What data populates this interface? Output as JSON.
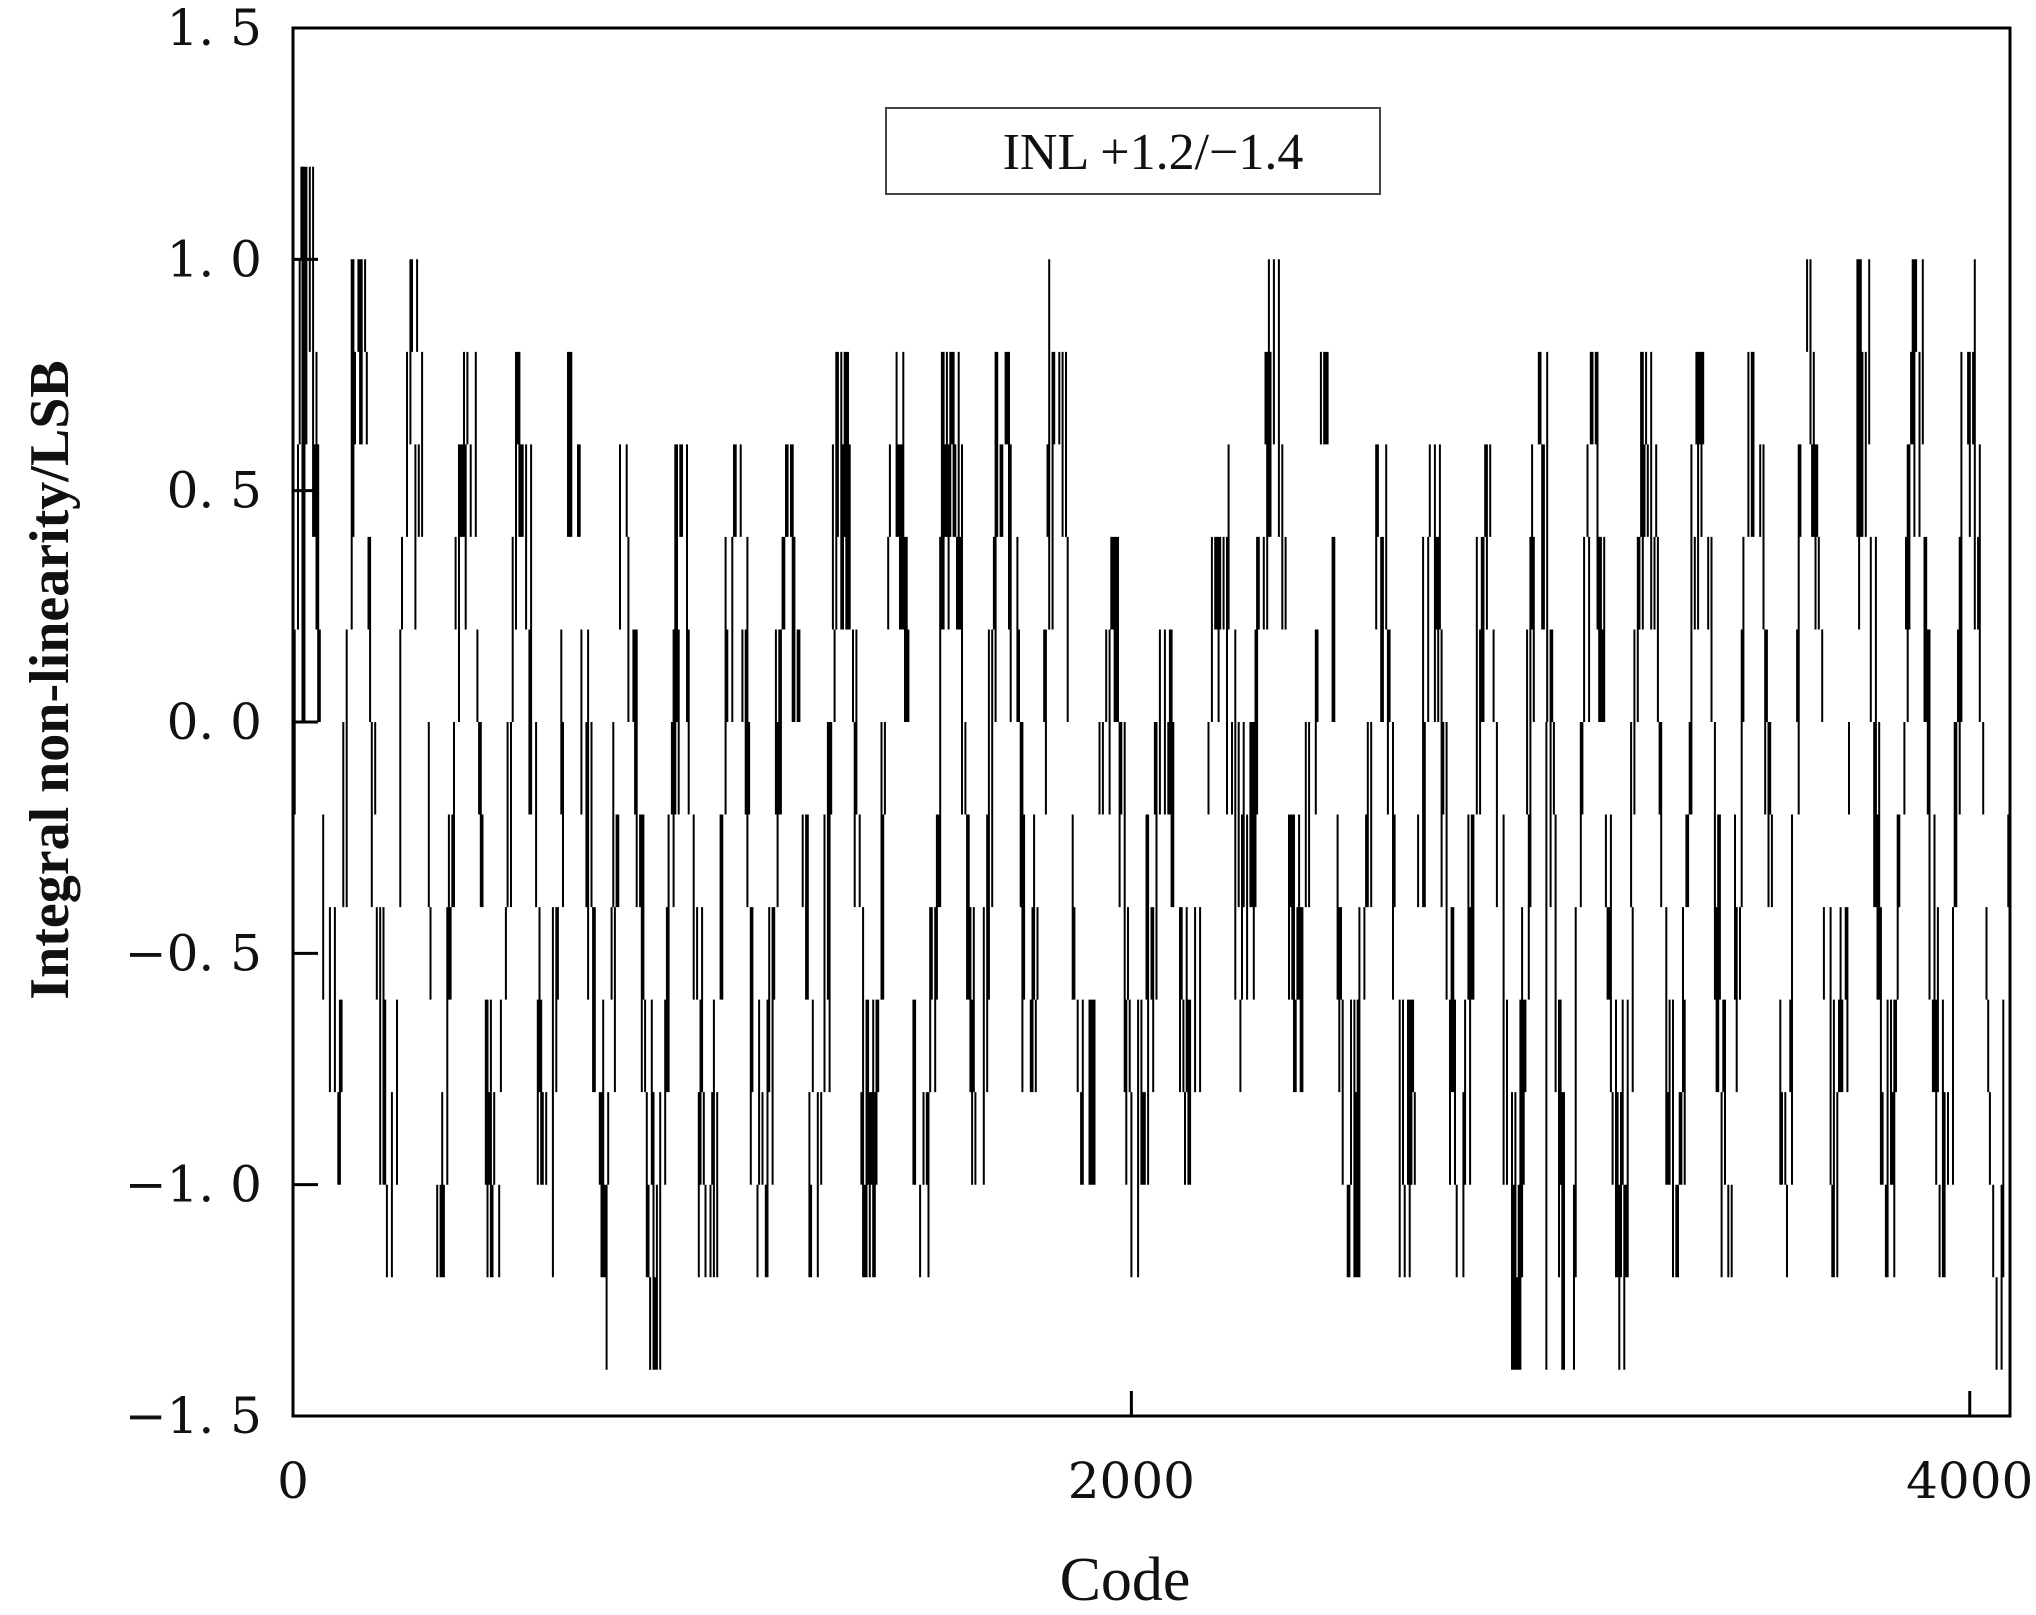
{
  "chart_data": {
    "type": "line",
    "title": "",
    "xlabel": "Code",
    "ylabel": "Integral non-linearity/LSB",
    "xlim": [
      0,
      4096
    ],
    "ylim": [
      -1.5,
      1.5
    ],
    "x_ticks": [
      {
        "value": 0,
        "label": "0"
      },
      {
        "value": 2000,
        "label": "2000"
      },
      {
        "value": 4000,
        "label": "4000"
      }
    ],
    "y_ticks": [
      {
        "value": 1.5,
        "label": "1. 5"
      },
      {
        "value": 1.0,
        "label": "1. 0"
      },
      {
        "value": 0.5,
        "label": "0. 5"
      },
      {
        "value": 0.0,
        "label": "0. 0"
      },
      {
        "value": -0.5,
        "label": "−0. 5"
      },
      {
        "value": -1.0,
        "label": "−1. 0"
      },
      {
        "value": -1.5,
        "label": "−1. 5"
      }
    ],
    "annotation": "INL +1.2/−1.4",
    "inl_max": 1.2,
    "inl_min": -1.4,
    "grid": false,
    "legend_position": "top-center",
    "series": [
      {
        "envelope": [
          {
            "x": 0,
            "lo": -1.0,
            "hi": 1.0
          },
          {
            "x": 25,
            "lo": -1.0,
            "hi": 1.2
          },
          {
            "x": 100,
            "lo": -1.0,
            "hi": 1.0
          },
          {
            "x": 250,
            "lo": -1.2,
            "hi": 1.0
          },
          {
            "x": 600,
            "lo": -1.2,
            "hi": 0.8
          },
          {
            "x": 880,
            "lo": -1.4,
            "hi": 0.6
          },
          {
            "x": 1000,
            "lo": -1.2,
            "hi": 0.6
          },
          {
            "x": 1400,
            "lo": -1.2,
            "hi": 0.8
          },
          {
            "x": 1700,
            "lo": -1.0,
            "hi": 0.8
          },
          {
            "x": 1790,
            "lo": -0.8,
            "hi": 1.0
          },
          {
            "x": 1950,
            "lo": -1.2,
            "hi": 0.4
          },
          {
            "x": 2100,
            "lo": -1.0,
            "hi": 0.2
          },
          {
            "x": 2200,
            "lo": -0.8,
            "hi": 0.4
          },
          {
            "x": 2340,
            "lo": -0.6,
            "hi": 1.0
          },
          {
            "x": 2400,
            "lo": -0.8,
            "hi": 1.0
          },
          {
            "x": 2500,
            "lo": -1.2,
            "hi": 0.6
          },
          {
            "x": 2800,
            "lo": -1.2,
            "hi": 0.6
          },
          {
            "x": 2990,
            "lo": -1.4,
            "hi": 0.8
          },
          {
            "x": 3400,
            "lo": -1.2,
            "hi": 0.8
          },
          {
            "x": 3700,
            "lo": -1.2,
            "hi": 1.0
          },
          {
            "x": 4000,
            "lo": -1.2,
            "hi": 1.0
          },
          {
            "x": 4096,
            "lo": -1.4,
            "hi": 0.8
          }
        ]
      }
    ]
  }
}
